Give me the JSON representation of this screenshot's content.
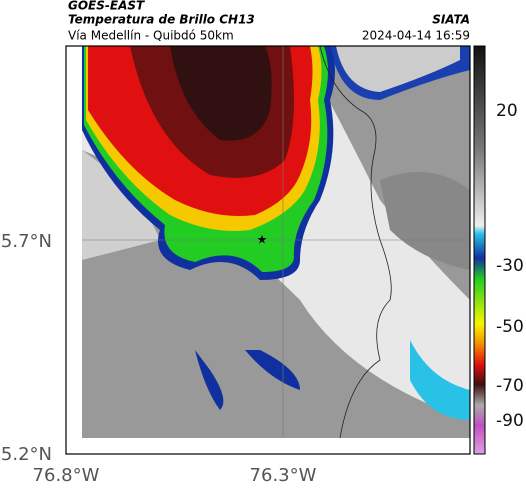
{
  "header": {
    "source": "GOES-EAST",
    "product": "Temperatura de Brillo CH13",
    "region": "Vía Medellín - Quibdó 50km",
    "agency": "SIATA",
    "timestamp": "2024-04-14 16:59"
  },
  "axes": {
    "y_labels": [
      "5.7°N",
      "5.2°N"
    ],
    "x_labels": [
      "76.8°W",
      "76.3°W"
    ]
  },
  "colorbar": {
    "ticks": [
      "20",
      "-30",
      "-50",
      "-70",
      "-90"
    ]
  }
}
